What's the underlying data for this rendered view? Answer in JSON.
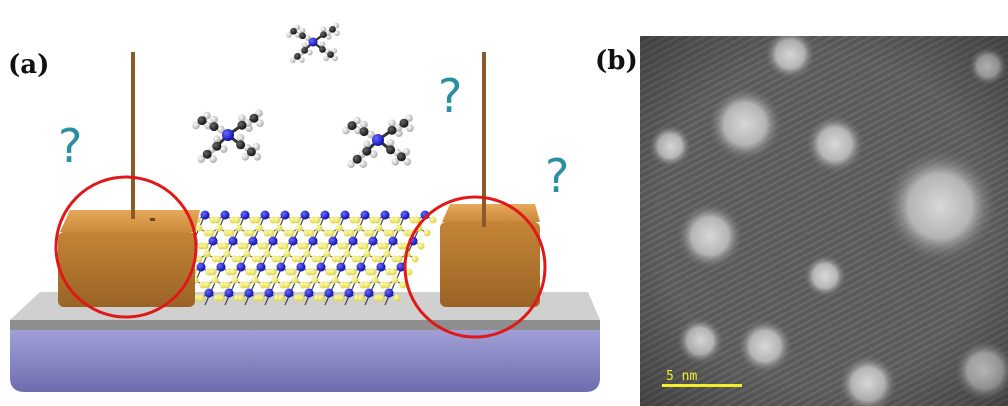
{
  "panels": {
    "a": {
      "label": "(a)"
    },
    "b": {
      "label": "(b)"
    }
  },
  "scheme": {
    "question_mark": "?",
    "colors": {
      "electrode": "#c98a3c",
      "wire": "#8a5a2a",
      "substrate_top": "#9a9a9a",
      "substrate_base": "#8a88c4",
      "metal_atom": "#1a1ad0",
      "chalcogen_atom": "#f2ef66",
      "highlight_ring": "#e01818",
      "question_mark": "#2a8fa0"
    }
  },
  "micrograph": {
    "scale_bar_label": "5  nm",
    "colors": {
      "scale_bar": "#f2ee2a"
    }
  }
}
